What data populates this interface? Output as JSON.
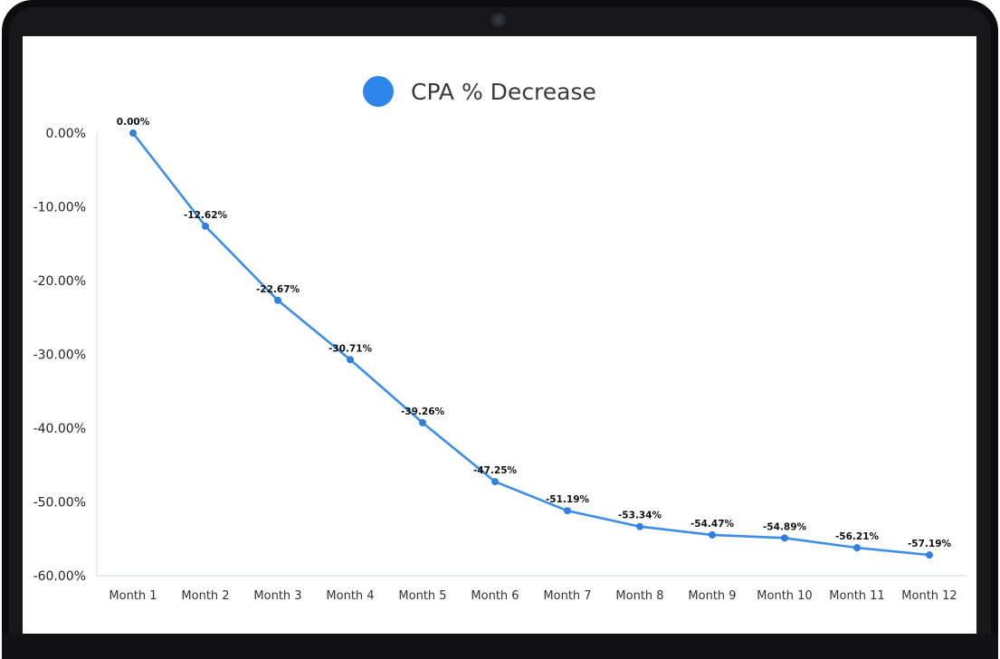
{
  "chart_data": {
    "type": "line",
    "title": "",
    "xlabel": "",
    "ylabel": "",
    "categories": [
      "Month 1",
      "Month 2",
      "Month 3",
      "Month 4",
      "Month 5",
      "Month 6",
      "Month 7",
      "Month 8",
      "Month 9",
      "Month 10",
      "Month 11",
      "Month 12"
    ],
    "series": [
      {
        "name": "CPA % Decrease",
        "values": [
          0.0,
          -12.62,
          -22.67,
          -30.71,
          -39.26,
          -47.25,
          -51.19,
          -53.34,
          -54.47,
          -54.89,
          -56.21,
          -57.19
        ],
        "labels": [
          "0.00%",
          "-12.62%",
          "-22.67%",
          "-30.71%",
          "-39.26%",
          "-47.25%",
          "-51.19%",
          "-53.34%",
          "-54.47%",
          "-54.89%",
          "-56.21%",
          "-57.19%"
        ]
      }
    ],
    "ylim": [
      -60,
      0
    ],
    "yticks": [
      0,
      -10,
      -20,
      -30,
      -40,
      -50,
      -60
    ],
    "ytick_labels": [
      "0.00%",
      "-10.00%",
      "-20.00%",
      "-30.00%",
      "-40.00%",
      "-50.00%",
      "-60.00%"
    ],
    "legend_position": "top-center",
    "grid": false,
    "colors": {
      "series": "#3a8ee8",
      "marker": "#2f80e0",
      "legend_marker": "#2f86ea"
    }
  }
}
